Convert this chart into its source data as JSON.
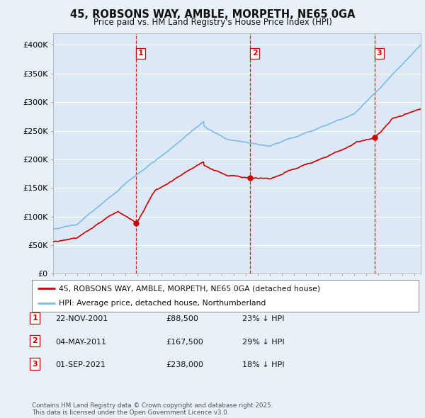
{
  "title1": "45, ROBSONS WAY, AMBLE, MORPETH, NE65 0GA",
  "title2": "Price paid vs. HM Land Registry's House Price Index (HPI)",
  "background_color": "#e8f0f8",
  "plot_bg_color": "#dce8f5",
  "grid_color": "#ffffff",
  "sale_color": "#cc0000",
  "hpi_color": "#7abce8",
  "vline_color": "#cc0000",
  "ylim": [
    0,
    420000
  ],
  "yticks": [
    0,
    50000,
    100000,
    150000,
    200000,
    250000,
    300000,
    350000,
    400000
  ],
  "ytick_labels": [
    "£0",
    "£50K",
    "£100K",
    "£150K",
    "£200K",
    "£250K",
    "£300K",
    "£350K",
    "£400K"
  ],
  "sales": [
    {
      "date_num": 2001.9,
      "price": 88500,
      "label": "1"
    },
    {
      "date_num": 2011.35,
      "price": 167500,
      "label": "2"
    },
    {
      "date_num": 2021.67,
      "price": 238000,
      "label": "3"
    }
  ],
  "legend_sale": "45, ROBSONS WAY, AMBLE, MORPETH, NE65 0GA (detached house)",
  "legend_hpi": "HPI: Average price, detached house, Northumberland",
  "table": [
    {
      "num": "1",
      "date": "22-NOV-2001",
      "price": "£88,500",
      "pct": "23% ↓ HPI"
    },
    {
      "num": "2",
      "date": "04-MAY-2011",
      "price": "£167,500",
      "pct": "29% ↓ HPI"
    },
    {
      "num": "3",
      "date": "01-SEP-2021",
      "price": "£238,000",
      "pct": "18% ↓ HPI"
    }
  ],
  "footnote": "Contains HM Land Registry data © Crown copyright and database right 2025.\nThis data is licensed under the Open Government Licence v3.0.",
  "xstart": 1995.0,
  "xend": 2025.5
}
